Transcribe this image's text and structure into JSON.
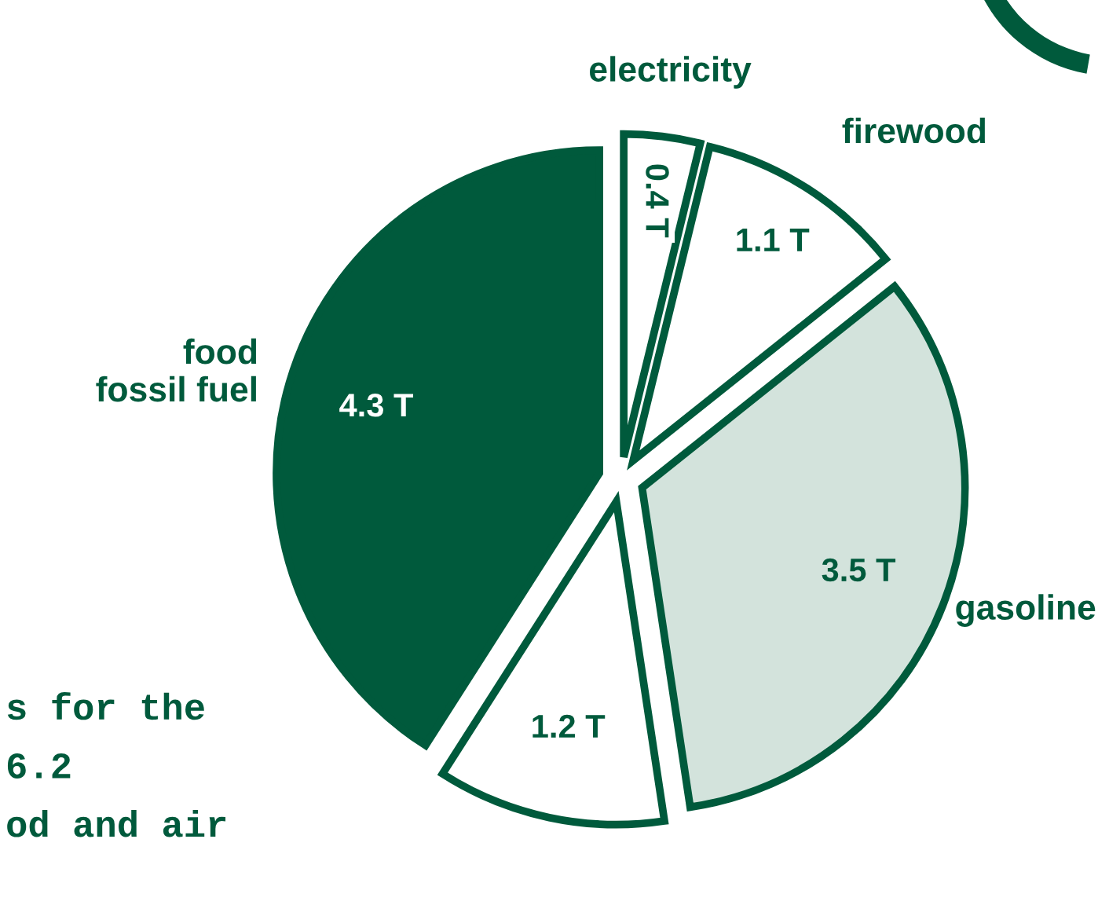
{
  "chart_data": {
    "type": "pie",
    "categories": [
      "electricity",
      "firewood",
      "gasoline",
      null,
      "food\nfossil fuel"
    ],
    "values": [
      0.4,
      1.1,
      3.5,
      1.2,
      4.3
    ],
    "value_labels": [
      "0.4 T",
      "1.1 T",
      "3.5 T",
      "1.2 T",
      "4.3 T"
    ],
    "colors": [
      "#ffffff",
      "#ffffff",
      "#d3e3dc",
      "#ffffff",
      "#005a3c"
    ],
    "annotations": [
      "s for the",
      "6.2",
      "od and air"
    ],
    "legend": false
  }
}
